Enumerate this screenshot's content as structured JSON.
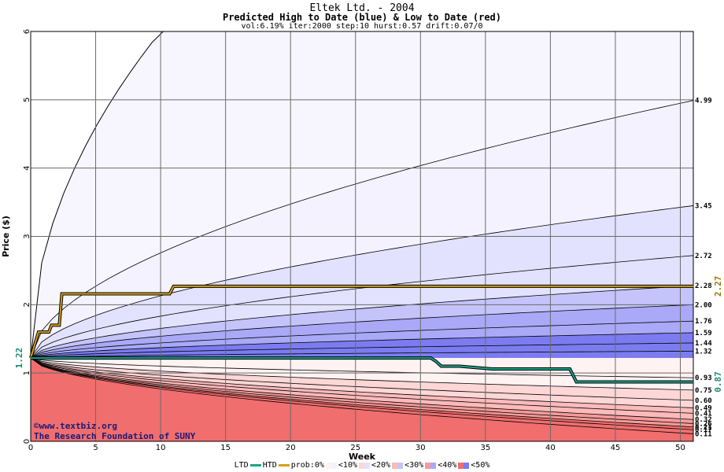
{
  "chart_data": {
    "type": "area",
    "title": "Eltek Ltd. - 2004",
    "subtitle": "Predicted High to Date (blue) &  Low to Date (red)",
    "params": "vol:6.19% iter:2000 step:10 hurst:0.57 drift:0.07/0",
    "xlabel": "Week",
    "ylabel": "Price ($)",
    "xlim": [
      0,
      51
    ],
    "ylim": [
      0,
      6
    ],
    "x_ticks": [
      "0",
      "5",
      "10",
      "15",
      "20",
      "25",
      "30",
      "35",
      "40",
      "45",
      "50"
    ],
    "y_ticks": [
      "0",
      "1",
      "2",
      "3",
      "4",
      "5",
      "6"
    ],
    "grid": true,
    "start_price": 1.22,
    "start_label": "1.22",
    "high_bands_end": [
      4.99,
      3.45,
      2.72,
      2.28,
      2.0,
      1.76,
      1.59,
      1.44,
      1.32
    ],
    "high_labels": [
      "4.99",
      "3.45",
      "2.72",
      "2.28",
      "2.00",
      "1.76",
      "1.59",
      "1.44",
      "1.32"
    ],
    "low_bands_end": [
      0.93,
      0.75,
      0.6,
      0.49,
      0.41,
      0.32,
      0.26,
      0.21,
      0.17,
      0.11
    ],
    "low_labels": [
      "0.93",
      "0.75",
      "0.60",
      "0.49",
      "0.41",
      "0.32",
      "0.26",
      "0.21",
      "0.17",
      "0.11"
    ],
    "series": [
      {
        "name": "HTD",
        "color": "#d4a017",
        "x": [
          0,
          0.6,
          1.4,
          1.6,
          2.2,
          2.4,
          10.7,
          11.0,
          51
        ],
        "y": [
          1.22,
          1.6,
          1.6,
          1.7,
          1.7,
          2.16,
          2.16,
          2.27,
          2.27
        ]
      },
      {
        "name": "LTD",
        "color": "#1aa58a",
        "x": [
          0,
          30.8,
          31.2,
          31.6,
          33.0,
          35.5,
          41.5,
          42.0,
          51
        ],
        "y": [
          1.22,
          1.22,
          1.17,
          1.1,
          1.1,
          1.06,
          1.06,
          0.87,
          0.87
        ]
      }
    ],
    "right_marker_high": "2.27",
    "right_marker_low": "0.87",
    "legend": {
      "ltd": "LTD",
      "htd": "HTD",
      "prob": "prob:0%",
      "b10": "<10%",
      "b20": "<20%",
      "b30": "<30%",
      "b40": "<40%",
      "b50": "<50%"
    },
    "colors": {
      "ltd": "#1aa58a",
      "htd": "#d4a017",
      "b10": "#f4f2ff",
      "b20": "#e2e2ff",
      "b30": "#c4c4fb",
      "b40": "#a9a9f8",
      "b50": "#7c7cf0",
      "r10": "#fff2f2",
      "r20": "#fdd6d6",
      "r30": "#fcbaba",
      "r40": "#f79a9a",
      "r50": "#f06e6e"
    }
  },
  "credit": {
    "line1": "©www.textbiz.org",
    "line2": "The Research Foundation of SUNY"
  }
}
